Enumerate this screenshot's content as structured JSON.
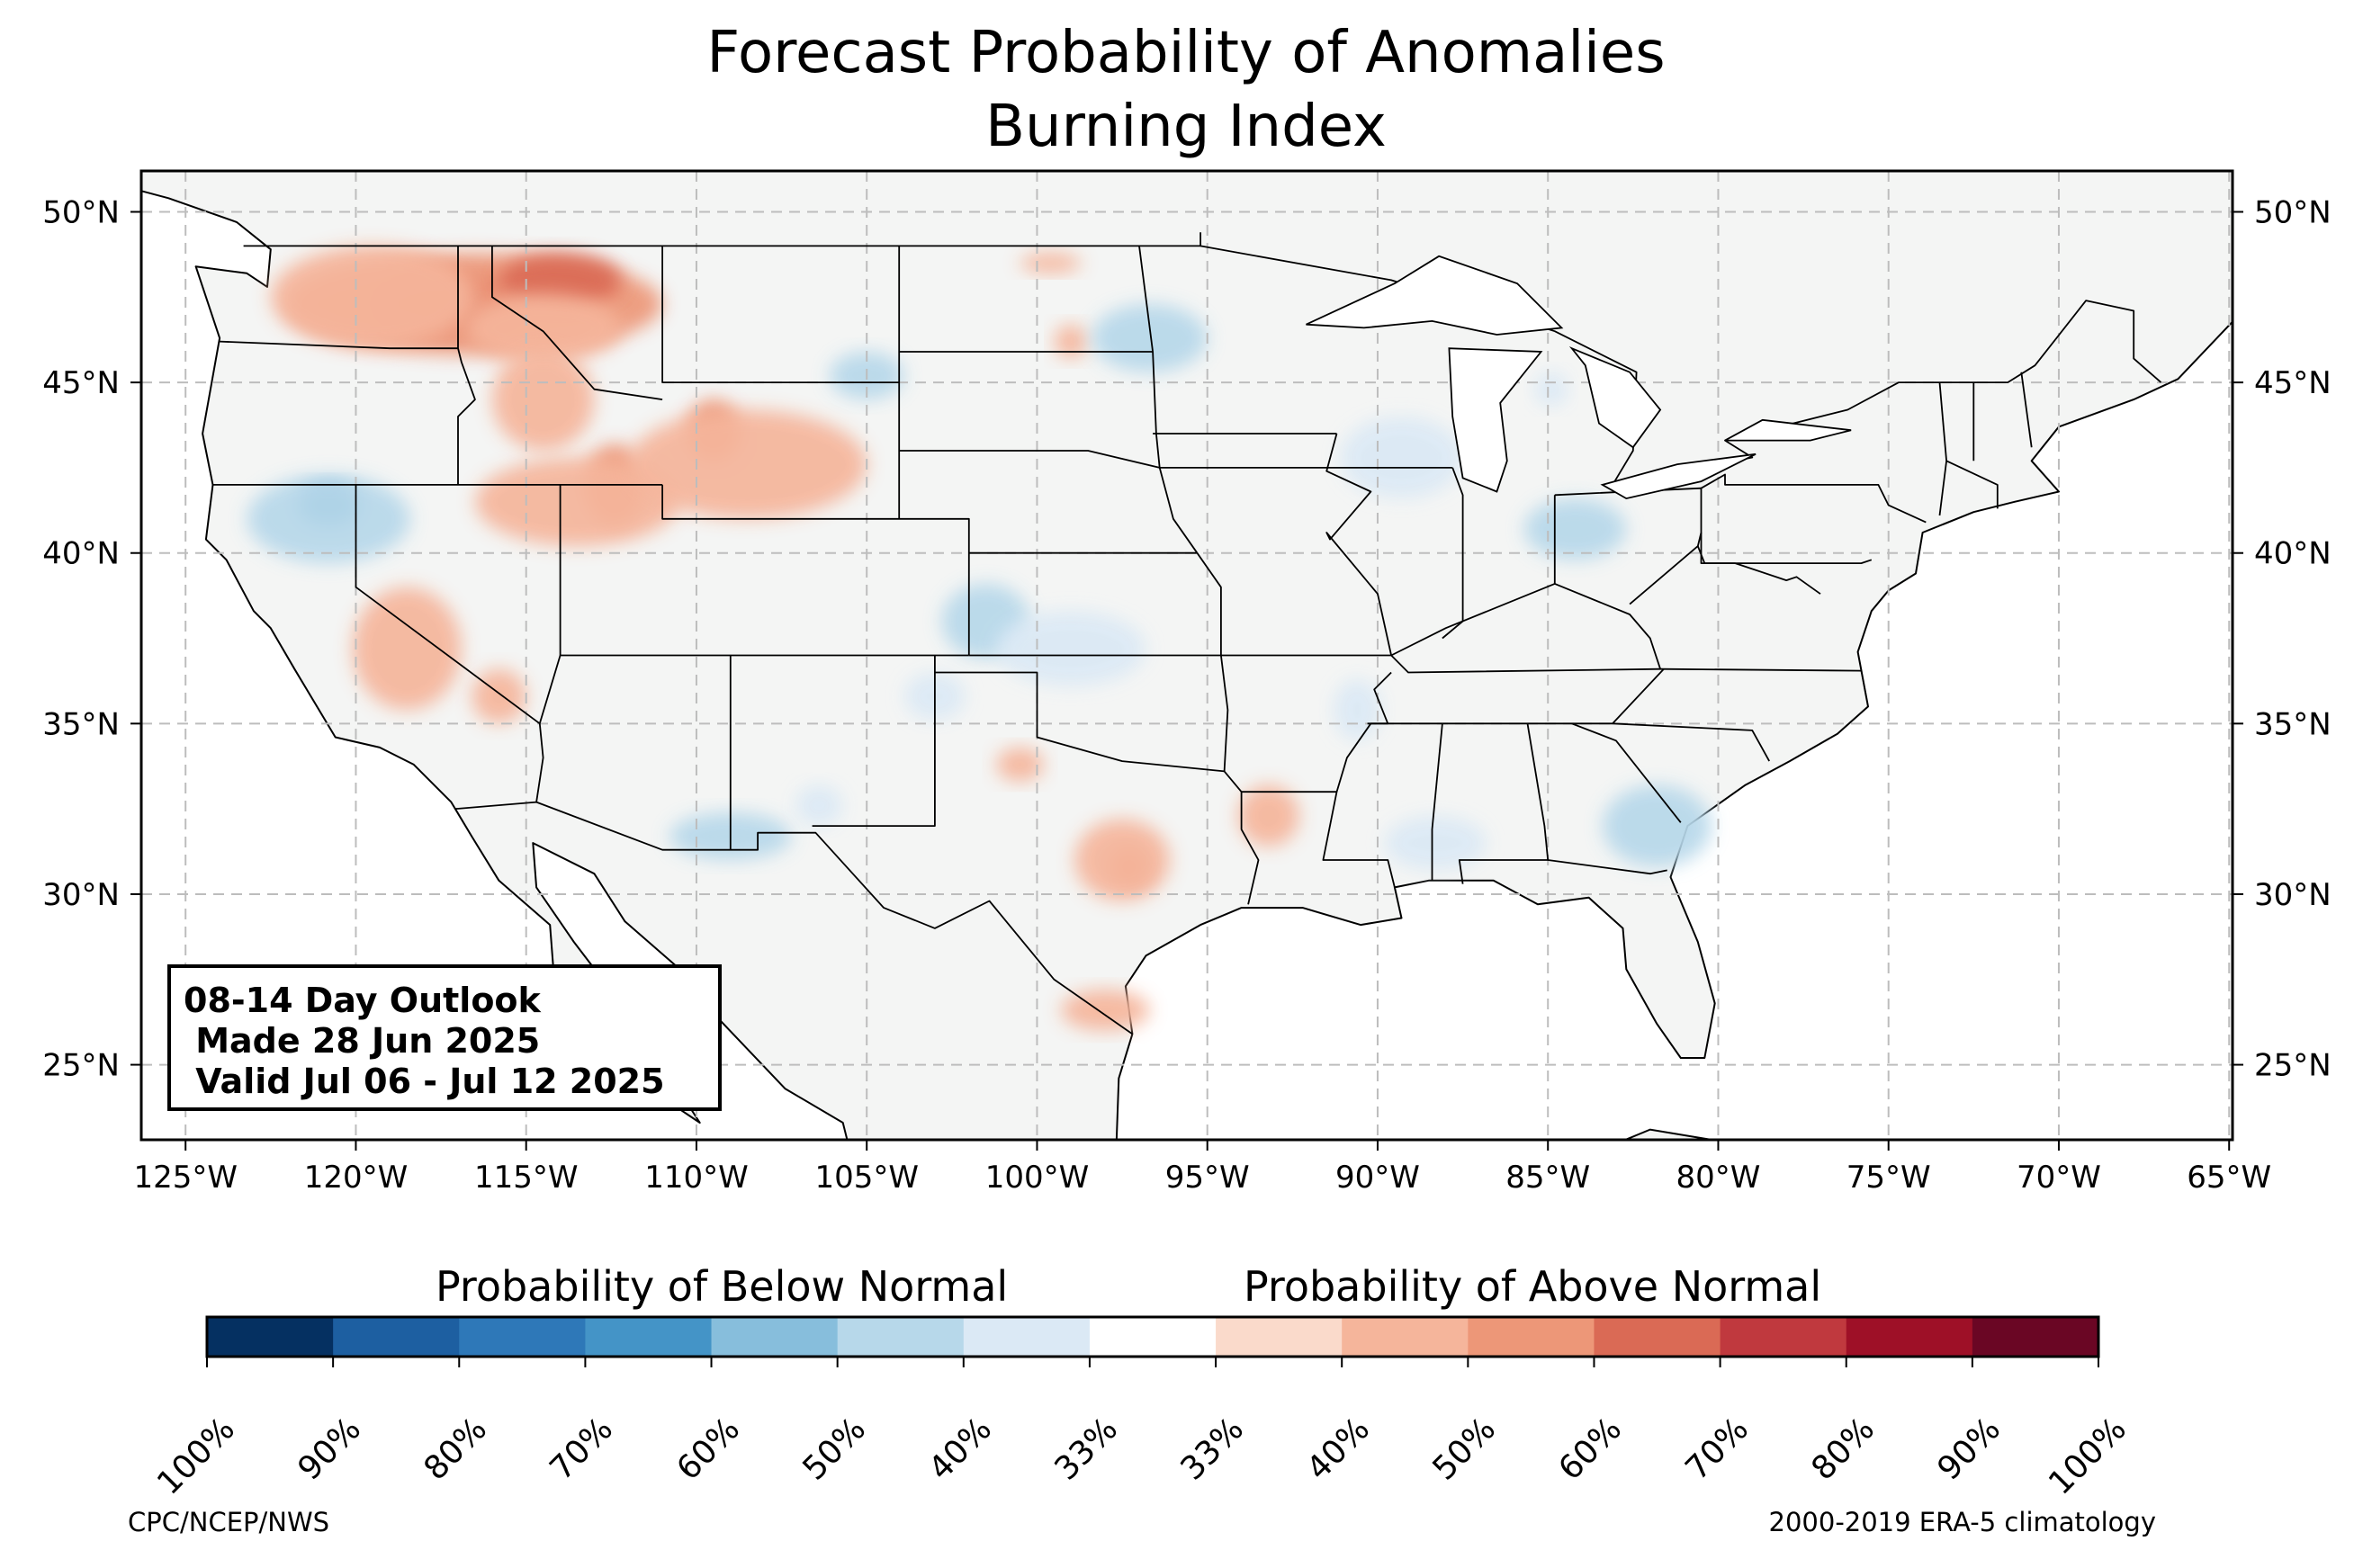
{
  "title": {
    "line1": "Forecast Probability of Anomalies",
    "line2": "Burning Index"
  },
  "map": {
    "projection": "PlateCarree",
    "lon_range": [
      -126.3,
      -64.9
    ],
    "lat_range": [
      22.8,
      51.2
    ],
    "lon_ticks": [
      -125,
      -120,
      -115,
      -110,
      -105,
      -100,
      -95,
      -90,
      -85,
      -80,
      -75,
      -70,
      -65
    ],
    "lon_tick_labels": [
      "125°W",
      "120°W",
      "115°W",
      "110°W",
      "105°W",
      "100°W",
      "95°W",
      "90°W",
      "85°W",
      "80°W",
      "75°W",
      "70°W",
      "65°W"
    ],
    "lat_ticks": [
      25,
      30,
      35,
      40,
      45,
      50
    ],
    "lat_tick_labels": [
      "25°N",
      "30°N",
      "35°N",
      "40°N",
      "45°N",
      "50°N"
    ],
    "gridlines": true,
    "land_color": "#f4f5f4",
    "ocean_color": "#ffffff",
    "regions": [
      {
        "name": "Pacific NW / N. Rockies",
        "category": "above",
        "probability": 70,
        "lon": -117.2,
        "lat": 47.3,
        "rlon": 2.2,
        "rlat": 0.9
      },
      {
        "name": "Pacific NW / N. Rockies",
        "category": "above",
        "probability": 50,
        "lon": -116.5,
        "lat": 47.3,
        "rlon": 5.5,
        "rlat": 1.5
      },
      {
        "name": "NW Montana",
        "category": "above",
        "probability": 60,
        "lon": -114.0,
        "lat": 48.0,
        "rlon": 1.8,
        "rlat": 0.8
      },
      {
        "name": "Washington",
        "category": "above",
        "probability": 40,
        "lon": -119.5,
        "lat": 47.5,
        "rlon": 3.0,
        "rlat": 1.5
      },
      {
        "name": "W. Montana",
        "category": "above",
        "probability": 40,
        "lon": -114.5,
        "lat": 46.6,
        "rlon": 2.3,
        "rlat": 1.0
      },
      {
        "name": "Central Idaho",
        "category": "above",
        "probability": 40,
        "lon": -114.5,
        "lat": 44.5,
        "rlon": 1.5,
        "rlat": 1.5
      },
      {
        "name": "N. Utah / SE Idaho",
        "category": "above",
        "probability": 50,
        "lon": -112.4,
        "lat": 42.0,
        "rlon": 0.9,
        "rlat": 1.2
      },
      {
        "name": "N. Nevada / Utah",
        "category": "above",
        "probability": 40,
        "lon": -113.5,
        "lat": 41.5,
        "rlon": 3.0,
        "rlat": 1.3
      },
      {
        "name": "Wyoming",
        "category": "above",
        "probability": 50,
        "lon": -109.5,
        "lat": 43.6,
        "rlon": 0.8,
        "rlat": 0.9
      },
      {
        "name": "Wyoming",
        "category": "above",
        "probability": 40,
        "lon": -108.5,
        "lat": 42.6,
        "rlon": 3.5,
        "rlat": 1.6
      },
      {
        "name": "Central California",
        "category": "above",
        "probability": 40,
        "lon": -118.5,
        "lat": 37.2,
        "rlon": 1.6,
        "rlat": 1.8
      },
      {
        "name": "SE Nevada",
        "category": "above",
        "probability": 40,
        "lon": -115.8,
        "lat": 35.8,
        "rlon": 0.8,
        "rlat": 0.8
      },
      {
        "name": "East Texas",
        "category": "above",
        "probability": 50,
        "lon": -97.3,
        "lat": 30.8,
        "rlon": 0.6,
        "rlat": 0.6
      },
      {
        "name": "Central Texas",
        "category": "above",
        "probability": 40,
        "lon": -97.5,
        "lat": 31.0,
        "rlon": 1.4,
        "rlat": 1.2
      },
      {
        "name": "S. Texas",
        "category": "above",
        "probability": 40,
        "lon": -98.0,
        "lat": 26.6,
        "rlon": 1.3,
        "rlat": 0.6
      },
      {
        "name": "E. Texas / W. Louisiana",
        "category": "above",
        "probability": 40,
        "lon": -93.2,
        "lat": 32.3,
        "rlon": 0.9,
        "rlat": 0.9
      },
      {
        "name": "SE New Mexico / W. Texas",
        "category": "above",
        "probability": 40,
        "lon": -100.5,
        "lat": 33.8,
        "rlon": 0.7,
        "rlat": 0.5
      },
      {
        "name": "N. Minnesota",
        "category": "above",
        "probability": 40,
        "lon": -99.6,
        "lat": 48.5,
        "rlon": 0.9,
        "rlat": 0.3
      },
      {
        "name": "S. Dakota",
        "category": "above",
        "probability": 40,
        "lon": -99.0,
        "lat": 46.2,
        "rlon": 0.5,
        "rlat": 0.5
      },
      {
        "name": "N. Nevada / NE California",
        "category": "below",
        "probability": 60,
        "lon": -120.8,
        "lat": 41.4,
        "rlon": 0.9,
        "rlat": 0.6
      },
      {
        "name": "N. Nevada / NE California",
        "category": "below",
        "probability": 40,
        "lon": -120.8,
        "lat": 41.0,
        "rlon": 2.4,
        "rlat": 1.3
      },
      {
        "name": "S. Arizona / New Mexico",
        "category": "below",
        "probability": 40,
        "lon": -109.0,
        "lat": 31.7,
        "rlon": 1.8,
        "rlat": 0.7
      },
      {
        "name": "N. Dakota",
        "category": "below",
        "probability": 40,
        "lon": -96.7,
        "lat": 46.3,
        "rlon": 1.7,
        "rlat": 1.0
      },
      {
        "name": "S. Dakota",
        "category": "below",
        "probability": 40,
        "lon": -105.0,
        "lat": 45.2,
        "rlon": 1.1,
        "rlat": 0.7
      },
      {
        "name": "Oklahoma / Kansas",
        "category": "below",
        "probability": 40,
        "lon": -101.5,
        "lat": 38.0,
        "rlon": 1.3,
        "rlat": 1.1
      },
      {
        "name": "Kansas",
        "category": "below",
        "probability": 33,
        "lon": -99.0,
        "lat": 37.2,
        "rlon": 2.2,
        "rlat": 1.1
      },
      {
        "name": "Georgia / S. Carolina",
        "category": "below",
        "probability": 40,
        "lon": -81.8,
        "lat": 32.0,
        "rlon": 1.6,
        "rlat": 1.2
      },
      {
        "name": "Mississippi / Alabama",
        "category": "below",
        "probability": 33,
        "lon": -88.3,
        "lat": 31.5,
        "rlon": 1.5,
        "rlat": 0.8
      },
      {
        "name": "Indiana / Ohio",
        "category": "below",
        "probability": 40,
        "lon": -84.2,
        "lat": 40.7,
        "rlon": 1.5,
        "rlat": 0.9
      },
      {
        "name": "Iowa / Illinois",
        "category": "below",
        "probability": 33,
        "lon": -89.3,
        "lat": 42.8,
        "rlon": 1.8,
        "rlat": 1.2
      },
      {
        "name": "Arkansas",
        "category": "below",
        "probability": 33,
        "lon": -90.6,
        "lat": 35.4,
        "rlon": 0.7,
        "rlat": 0.9
      },
      {
        "name": "Michigan",
        "category": "below",
        "probability": 33,
        "lon": -84.9,
        "lat": 44.8,
        "rlon": 0.5,
        "rlat": 0.5
      },
      {
        "name": "E. Colorado",
        "category": "below",
        "probability": 33,
        "lon": -103.0,
        "lat": 35.8,
        "rlon": 0.9,
        "rlat": 0.7
      },
      {
        "name": "New Mexico",
        "category": "below",
        "probability": 33,
        "lon": -106.4,
        "lat": 32.6,
        "rlon": 0.7,
        "rlat": 0.6
      }
    ]
  },
  "colorbar": {
    "below_label": "Probability of Below Normal",
    "above_label": "Probability of Above Normal",
    "tick_labels": [
      "100%",
      "90%",
      "80%",
      "70%",
      "60%",
      "50%",
      "40%",
      "33%",
      "33%",
      "40%",
      "50%",
      "60%",
      "70%",
      "80%",
      "90%",
      "100%"
    ],
    "colors": [
      "#053061",
      "#1d5fa1",
      "#2e78b8",
      "#4494c7",
      "#87bedc",
      "#b7d8ea",
      "#dbe9f5",
      "#ffffff",
      "#fadacb",
      "#f5b59b",
      "#ed9778",
      "#da6a55",
      "#c0393e",
      "#9e1027",
      "#6a0624"
    ]
  },
  "outlook": {
    "line1": "08-14 Day Outlook",
    "line2": " Made 28 Jun 2025",
    "line3": " Valid Jul 06 - Jul 12 2025"
  },
  "credits": {
    "left": "CPC/NCEP/NWS",
    "right": "2000-2019 ERA-5 climatology"
  }
}
